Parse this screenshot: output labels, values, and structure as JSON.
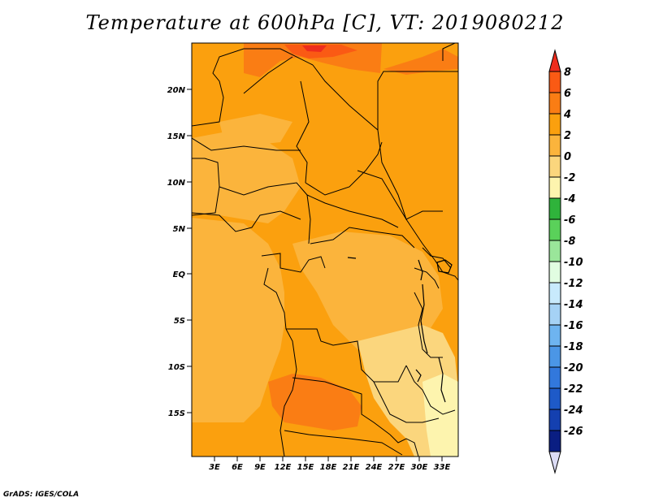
{
  "title": "Temperature at 600hPa [C], VT: 2019080212",
  "credit": "GrADS: IGES/COLA",
  "lat_labels": [
    "20N",
    "15N",
    "10N",
    "5N",
    "EQ",
    "5S",
    "10S",
    "15S"
  ],
  "lon_labels": [
    "3E",
    "6E",
    "9E",
    "12E",
    "15E",
    "18E",
    "21E",
    "24E",
    "27E",
    "30E",
    "33E"
  ],
  "colorbar": {
    "labels": [
      "8",
      "6",
      "4",
      "2",
      "0",
      "-2",
      "-4",
      "-6",
      "-8",
      "-10",
      "-12",
      "-14",
      "-16",
      "-18",
      "-20",
      "-22",
      "-24",
      "-26"
    ],
    "colors": [
      "#ee2d1d",
      "#fa5a14",
      "#fa7d14",
      "#fba00e",
      "#fbb43c",
      "#fbd67d",
      "#fdf4ae",
      "#2fb33b",
      "#5ad15a",
      "#9ae69a",
      "#e1fde1",
      "#c8eafc",
      "#a5d2f5",
      "#6eb4f0",
      "#4b96e6",
      "#3278dc",
      "#1e5ac8",
      "#1440b0",
      "#0a1e82",
      "#dcdcf5"
    ]
  }
}
